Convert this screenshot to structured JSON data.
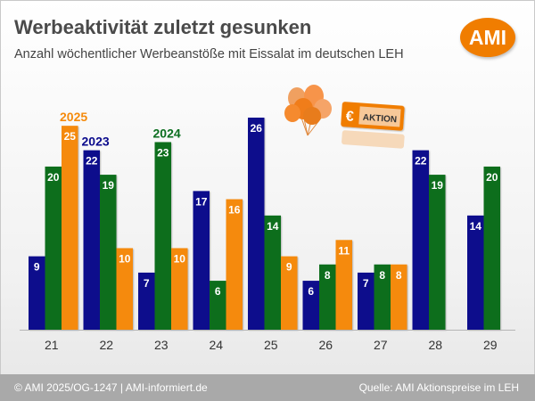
{
  "header": {
    "title": "Werbeaktivität zuletzt gesunken",
    "subtitle": "Anzahl wöchentlicher Werbeanstöße mit Eissalat im deutschen LEH",
    "logo": "AMI"
  },
  "decor": {
    "badge_text": "AKTION",
    "currency_symbol": "€",
    "illustration": "balloons-and-sale-tag-icon"
  },
  "footer": {
    "left": "© AMI 2025/OG-1247 | AMI-informiert.de",
    "right": "Quelle: AMI Aktionspreise im LEH"
  },
  "chart_data": {
    "type": "bar",
    "title": "",
    "xlabel": "",
    "ylabel": "",
    "categories": [
      "21",
      "22",
      "23",
      "24",
      "25",
      "26",
      "27",
      "28",
      "29"
    ],
    "ylim": [
      0,
      27
    ],
    "grid": false,
    "series": [
      {
        "name": "2023",
        "color": "#0a0a8c",
        "values": [
          9,
          22,
          7,
          17,
          26,
          6,
          7,
          22,
          14
        ]
      },
      {
        "name": "2024",
        "color": "#0b6e1f",
        "values": [
          20,
          19,
          23,
          6,
          14,
          8,
          8,
          19,
          20
        ]
      },
      {
        "name": "2025",
        "color": "#f58a0b",
        "values": [
          25,
          10,
          10,
          16,
          9,
          11,
          8,
          null,
          null
        ]
      }
    ],
    "series_labels": [
      {
        "series": "2023",
        "category": "22"
      },
      {
        "series": "2024",
        "category": "23"
      },
      {
        "series": "2025",
        "category": "21"
      }
    ]
  }
}
